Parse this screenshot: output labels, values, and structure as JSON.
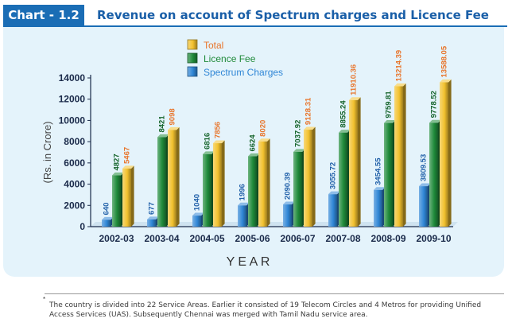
{
  "header": {
    "tag": "Chart - 1.2",
    "title": "Revenue on account of Spectrum charges and Licence Fee"
  },
  "footnote": {
    "mark": "*",
    "text": "The country is divided into 22 Service Areas. Earlier it consisted of 19 Telecom Circles and 4 Metros for providing Unified Access Services (UAS). Subsequently Chennai was merged with Tamil Nadu service area."
  },
  "chart_data": {
    "type": "bar",
    "title": "Revenue on account of Spectrum charges and Licence Fee",
    "xlabel": "Y E A R",
    "ylabel": "(Rs. in Crore)",
    "ylim": [
      0,
      14000
    ],
    "yticks": [
      "0",
      "2000",
      "4000",
      "6000",
      "8000",
      "10000",
      "12000",
      "14000"
    ],
    "categories": [
      "2002-03",
      "2003-04",
      "2004-05",
      "2005-06",
      "2006-07",
      "2007-08",
      "2008-09",
      "2009-10"
    ],
    "legend_position": "top-center",
    "series": [
      {
        "name": "Spectrum Charges",
        "color": "#2f86d6",
        "label_color": "#1f5fa8",
        "values": [
          640,
          677,
          1040,
          1996,
          2090.39,
          3055.72,
          3454.55,
          3809.53
        ],
        "labels": [
          "640",
          "677",
          "1040",
          "1996",
          "2090.39",
          "3055.72",
          "3454.55",
          "3809.53"
        ]
      },
      {
        "name": "Licence Fee",
        "color": "#1f8a3a",
        "label_color": "#14632a",
        "values": [
          4827,
          8421,
          6816,
          6624,
          7037.92,
          8855.24,
          9759.81,
          9778.52
        ],
        "labels": [
          "4827",
          "8421",
          "6816",
          "6624",
          "7037.92",
          "8855.24",
          "9759.81",
          "9778.52"
        ]
      },
      {
        "name": "Total",
        "color": "#f2c12e",
        "label_color": "#e8742a",
        "values": [
          5467,
          9098,
          7856,
          8020,
          9128.31,
          11910.36,
          13214.39,
          13588.05
        ],
        "labels": [
          "5467",
          "9098",
          "7856",
          "8020",
          "9128.31",
          "11910.36",
          "13214.39",
          "13588.05"
        ]
      }
    ],
    "grid": false
  }
}
